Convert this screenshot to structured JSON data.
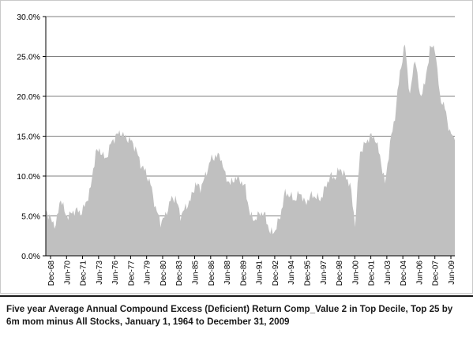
{
  "chart_data": {
    "type": "area",
    "title": "",
    "caption": "Five year Average Annual Compound Excess (Deficient) Return Comp_Value 2 in Top Decile, Top 25 by 6m mom minus All Stocks, January 1, 1964 to December 31, 2009",
    "xlabel": "",
    "ylabel": "",
    "ylim": [
      0,
      0.3
    ],
    "y_ticks": [
      "0.0%",
      "5.0%",
      "10.0%",
      "15.0%",
      "20.0%",
      "25.0%",
      "30.0%"
    ],
    "x_ticks": [
      "Dec-68",
      "Jun-70",
      "Dec-71",
      "Jun-73",
      "Jun-76",
      "Dec-77",
      "Jun-79",
      "Dec-80",
      "Dec-83",
      "Jun-85",
      "Dec-86",
      "Jun-88",
      "Dec-89",
      "Jun-91",
      "Dec-92",
      "Jun-94",
      "Dec-95",
      "Jun-97",
      "Dec-98",
      "Jun-00",
      "Dec-01",
      "Jun-03",
      "Dec-04",
      "Jun-06",
      "Dec-07",
      "Jun-09"
    ],
    "grid": "horizontal",
    "legend": "none",
    "fill_color": "#c0c0c0",
    "gridline_color": "#808080",
    "series": [
      {
        "x": [
          "Dec-68",
          "Jun-69",
          "Dec-69",
          "Jun-70",
          "Dec-70",
          "Jun-71",
          "Dec-71",
          "Jun-72",
          "Dec-72",
          "Jun-73",
          "Dec-73",
          "Jun-74",
          "Dec-74",
          "Jun-75",
          "Dec-75",
          "Jun-76",
          "Dec-76",
          "Jun-77",
          "Dec-77",
          "Jun-78",
          "Dec-78",
          "Jun-79",
          "Dec-79",
          "Jun-80",
          "Dec-80",
          "Jun-81",
          "Dec-81",
          "Jun-82",
          "Dec-82",
          "Jun-83",
          "Dec-83",
          "Jun-84",
          "Dec-84",
          "Jun-85",
          "Dec-85",
          "Jun-86",
          "Dec-86",
          "Jun-87",
          "Dec-87",
          "Jun-88",
          "Dec-88",
          "Jun-89",
          "Dec-89",
          "Jun-90",
          "Dec-90",
          "Jun-91",
          "Dec-91",
          "Jun-92",
          "Dec-92",
          "Jun-93",
          "Dec-93",
          "Jun-94",
          "Dec-94",
          "Jun-95",
          "Dec-95",
          "Jun-96",
          "Dec-96",
          "Jun-97",
          "Dec-97",
          "Jun-98",
          "Dec-98",
          "Jun-99",
          "Dec-99",
          "Jun-00",
          "Dec-00",
          "Jun-01",
          "Dec-01",
          "Jun-02",
          "Dec-02",
          "Jun-03",
          "Dec-03",
          "Jun-04",
          "Dec-04",
          "Jun-05",
          "Dec-05",
          "Jun-06",
          "Dec-06",
          "Jun-07",
          "Dec-07",
          "Jun-08",
          "Dec-08",
          "Jun-09",
          "Dec-09"
        ],
        "values": [
          0.058,
          0.045,
          0.038,
          0.073,
          0.05,
          0.052,
          0.058,
          0.053,
          0.065,
          0.085,
          0.13,
          0.132,
          0.12,
          0.14,
          0.15,
          0.155,
          0.148,
          0.145,
          0.135,
          0.115,
          0.105,
          0.09,
          0.06,
          0.042,
          0.05,
          0.07,
          0.073,
          0.05,
          0.06,
          0.07,
          0.09,
          0.085,
          0.1,
          0.12,
          0.125,
          0.125,
          0.1,
          0.09,
          0.098,
          0.095,
          0.085,
          0.05,
          0.045,
          0.055,
          0.05,
          0.028,
          0.032,
          0.05,
          0.08,
          0.075,
          0.07,
          0.08,
          0.065,
          0.075,
          0.075,
          0.07,
          0.085,
          0.1,
          0.098,
          0.11,
          0.1,
          0.09,
          0.04,
          0.13,
          0.14,
          0.15,
          0.148,
          0.125,
          0.09,
          0.14,
          0.175,
          0.23,
          0.265,
          0.2,
          0.25,
          0.2,
          0.215,
          0.26,
          0.262,
          0.2,
          0.185,
          0.155,
          0.145
        ]
      }
    ]
  }
}
